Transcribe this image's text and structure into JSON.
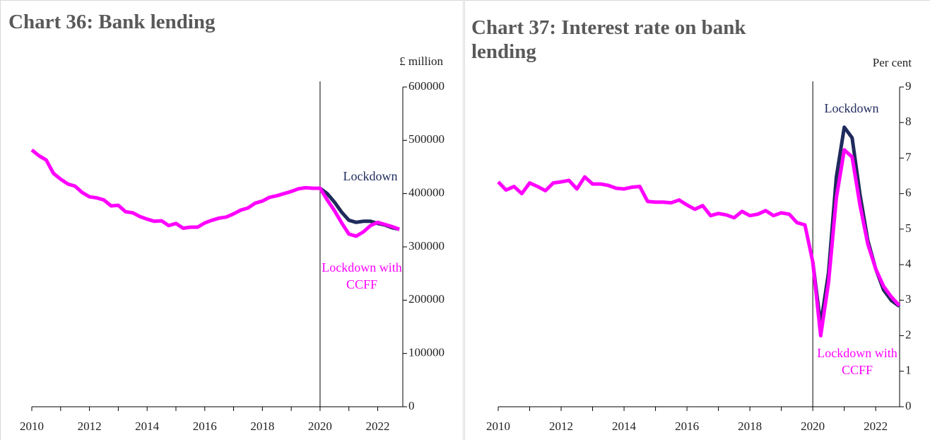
{
  "chart_data": [
    {
      "type": "line",
      "title": "Chart 36: Bank lending",
      "y_unit_label": "£ million",
      "x": [
        2010,
        2010.25,
        2010.5,
        2010.75,
        2011,
        2011.25,
        2011.5,
        2011.75,
        2012,
        2012.25,
        2012.5,
        2012.75,
        2013,
        2013.25,
        2013.5,
        2013.75,
        2014,
        2014.25,
        2014.5,
        2014.75,
        2015,
        2015.25,
        2015.5,
        2015.75,
        2016,
        2016.25,
        2016.5,
        2016.75,
        2017,
        2017.25,
        2017.5,
        2017.75,
        2018,
        2018.25,
        2018.5,
        2018.75,
        2019,
        2019.25,
        2019.5,
        2019.75,
        2020,
        2020.25,
        2020.5,
        2020.75,
        2021,
        2021.25,
        2021.5,
        2021.75,
        2022,
        2022.25,
        2022.5,
        2022.75
      ],
      "series": [
        {
          "name": "Lockdown",
          "color": "#1f2a5c",
          "values": [
            null,
            null,
            null,
            null,
            null,
            null,
            null,
            null,
            null,
            null,
            null,
            null,
            null,
            null,
            null,
            null,
            null,
            null,
            null,
            null,
            null,
            null,
            null,
            null,
            null,
            null,
            null,
            null,
            null,
            null,
            null,
            null,
            null,
            null,
            null,
            null,
            null,
            null,
            null,
            null,
            410000,
            400000,
            384000,
            365000,
            350000,
            346000,
            348000,
            348000,
            344000,
            341000,
            336000,
            333000
          ]
        },
        {
          "name": "Lockdown with CCFF",
          "color": "#ff00ff",
          "values": [
            482000,
            471000,
            463000,
            438000,
            427000,
            418000,
            414000,
            402000,
            394000,
            392000,
            388000,
            377000,
            378000,
            366000,
            364000,
            357000,
            352000,
            348000,
            349000,
            340000,
            344000,
            335000,
            337000,
            337000,
            345000,
            350000,
            354000,
            356000,
            362000,
            369000,
            373000,
            382000,
            386000,
            393000,
            396000,
            400000,
            404000,
            409000,
            411000,
            410000,
            410000,
            388000,
            368000,
            345000,
            324000,
            320000,
            328000,
            340000,
            346000,
            342000,
            338000,
            333000
          ]
        }
      ],
      "xlim": [
        2010,
        2022.87
      ],
      "xticks": [
        2010,
        2012,
        2014,
        2016,
        2018,
        2020,
        2022
      ],
      "xticks_minor": [
        2011,
        2013,
        2015,
        2017,
        2019,
        2021
      ],
      "ylim": [
        0,
        600000
      ],
      "yticks": [
        0,
        100000,
        200000,
        300000,
        400000,
        500000,
        600000
      ],
      "vline": 2020
    },
    {
      "type": "line",
      "title": "Chart 37: Interest rate on bank lending",
      "y_unit_label": "Per cent",
      "x": [
        2010,
        2010.25,
        2010.5,
        2010.75,
        2011,
        2011.25,
        2011.5,
        2011.75,
        2012,
        2012.25,
        2012.5,
        2012.75,
        2013,
        2013.25,
        2013.5,
        2013.75,
        2014,
        2014.25,
        2014.5,
        2014.75,
        2015,
        2015.25,
        2015.5,
        2015.75,
        2016,
        2016.25,
        2016.5,
        2016.75,
        2017,
        2017.25,
        2017.5,
        2017.75,
        2018,
        2018.25,
        2018.5,
        2018.75,
        2019,
        2019.25,
        2019.5,
        2019.75,
        2020,
        2020.25,
        2020.5,
        2020.75,
        2021,
        2021.25,
        2021.5,
        2021.75,
        2022,
        2022.25,
        2022.5,
        2022.75
      ],
      "series": [
        {
          "name": "Lockdown",
          "color": "#1f2a5c",
          "values": [
            null,
            null,
            null,
            null,
            null,
            null,
            null,
            null,
            null,
            null,
            null,
            null,
            null,
            null,
            null,
            null,
            null,
            null,
            null,
            null,
            null,
            null,
            null,
            null,
            null,
            null,
            null,
            null,
            null,
            null,
            null,
            null,
            null,
            null,
            null,
            null,
            null,
            null,
            null,
            null,
            4.08,
            2.3,
            3.78,
            6.47,
            7.87,
            7.57,
            5.98,
            4.68,
            3.88,
            3.29,
            2.99,
            2.83
          ]
        },
        {
          "name": "Lockdown with CCFF",
          "color": "#ff00ff",
          "values": [
            6.33,
            6.1,
            6.2,
            6.0,
            6.3,
            6.2,
            6.08,
            6.3,
            6.33,
            6.37,
            6.13,
            6.47,
            6.27,
            6.27,
            6.23,
            6.15,
            6.13,
            6.18,
            6.2,
            5.78,
            5.76,
            5.76,
            5.74,
            5.82,
            5.68,
            5.56,
            5.66,
            5.38,
            5.44,
            5.4,
            5.32,
            5.5,
            5.38,
            5.42,
            5.52,
            5.38,
            5.46,
            5.42,
            5.18,
            5.12,
            4.08,
            2.0,
            3.5,
            5.88,
            7.23,
            7.03,
            5.68,
            4.58,
            3.88,
            3.39,
            3.09,
            2.85
          ]
        }
      ],
      "xlim": [
        2010,
        2022.76
      ],
      "xticks": [
        2010,
        2012,
        2014,
        2016,
        2018,
        2020,
        2022
      ],
      "xticks_minor": [
        2011,
        2013,
        2015,
        2017,
        2019,
        2021
      ],
      "ylim": [
        0,
        9
      ],
      "yticks": [
        0,
        1,
        2,
        3,
        4,
        5,
        6,
        7,
        8,
        9
      ],
      "vline": 2020
    }
  ]
}
